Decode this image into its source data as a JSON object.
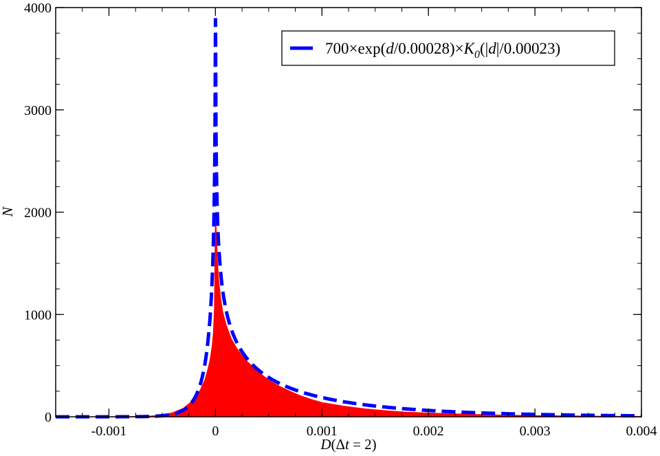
{
  "chart_data": {
    "type": "area",
    "title": "",
    "xlabel": {
      "italic": "D",
      "rest": "(Δ",
      "italic2": "t",
      "rest2": " = 2)"
    },
    "ylabel": "N",
    "xlim": [
      -0.0015,
      0.004
    ],
    "ylim": [
      0,
      4000
    ],
    "grid": false,
    "x_ticks": [
      {
        "value": -0.001,
        "label": "-0.001"
      },
      {
        "value": 0,
        "label": "0"
      },
      {
        "value": 0.001,
        "label": "0.001"
      },
      {
        "value": 0.002,
        "label": "0.002"
      },
      {
        "value": 0.003,
        "label": "0.003"
      },
      {
        "value": 0.004,
        "label": "0.004"
      }
    ],
    "y_ticks": [
      {
        "value": 0,
        "label": "0"
      },
      {
        "value": 1000,
        "label": "1000"
      },
      {
        "value": 2000,
        "label": "2000"
      },
      {
        "value": 3000,
        "label": "3000"
      },
      {
        "value": 4000,
        "label": "4000"
      }
    ],
    "legend_position": "top-right",
    "series": [
      {
        "name": "",
        "kind": "histogram",
        "color": "#ff0000",
        "points": [
          [
            -0.0015,
            0
          ],
          [
            -0.001,
            1
          ],
          [
            -0.0008,
            3
          ],
          [
            -0.0006,
            8
          ],
          [
            -0.0005,
            18
          ],
          [
            -0.0004,
            40
          ],
          [
            -0.0003,
            85
          ],
          [
            -0.0002,
            170
          ],
          [
            -0.00015,
            245
          ],
          [
            -0.0001,
            360
          ],
          [
            -7e-05,
            470
          ],
          [
            -5e-05,
            560
          ],
          [
            -3e-05,
            700
          ],
          [
            -2e-05,
            820
          ],
          [
            -1e-05,
            1050
          ],
          [
            0,
            2000
          ],
          [
            1e-05,
            1750
          ],
          [
            2e-05,
            1500
          ],
          [
            3e-05,
            1350
          ],
          [
            5e-05,
            1150
          ],
          [
            7e-05,
            1020
          ],
          [
            0.0001,
            900
          ],
          [
            0.00015,
            760
          ],
          [
            0.0002,
            670
          ],
          [
            0.00025,
            600
          ],
          [
            0.0003,
            540
          ],
          [
            0.0004,
            440
          ],
          [
            0.0005,
            360
          ],
          [
            0.0006,
            300
          ],
          [
            0.0007,
            250
          ],
          [
            0.0008,
            205
          ],
          [
            0.0009,
            170
          ],
          [
            0.001,
            140
          ],
          [
            0.0012,
            105
          ],
          [
            0.0014,
            78
          ],
          [
            0.0016,
            60
          ],
          [
            0.0018,
            46
          ],
          [
            0.002,
            37
          ],
          [
            0.0022,
            30
          ],
          [
            0.0024,
            24
          ],
          [
            0.0026,
            19
          ],
          [
            0.0028,
            15
          ],
          [
            0.003,
            12
          ],
          [
            0.0032,
            10
          ],
          [
            0.0034,
            8
          ],
          [
            0.0036,
            6
          ],
          [
            0.0038,
            5
          ],
          [
            0.004,
            4
          ]
        ]
      },
      {
        "name": "700×exp(d/0.00028)×K0(|d|/0.00023)",
        "name_parts": {
          "pre": "700×exp(",
          "d": "d",
          "mid": "/0.00028)×",
          "K": "K",
          "sub": "0",
          "open": "(|",
          "d2": "d",
          "post": "|/0.00023)"
        },
        "kind": "line",
        "color": "#0000ff",
        "style": "dashed",
        "formula": {
          "amplitude": 700,
          "exp_scale": 0.00028,
          "bessel_scale": 0.00023
        }
      }
    ]
  }
}
